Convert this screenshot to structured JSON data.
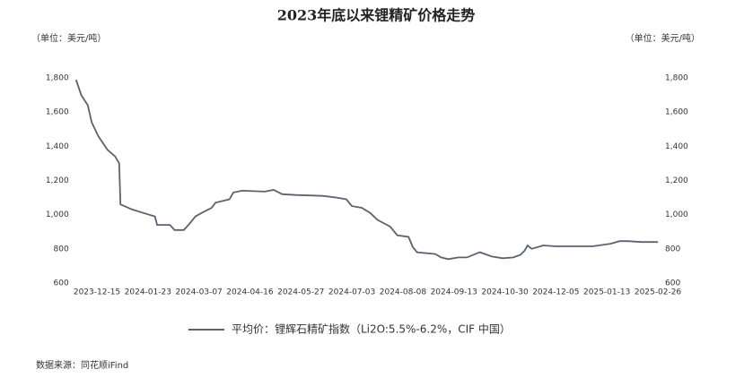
{
  "chart_data": {
    "type": "line",
    "title": "2023年底以来锂精矿价格走势",
    "y_label": "（单位：美元/吨）",
    "y2_label": "（单位：美元/吨）",
    "source": "数据来源：同花顺iFind",
    "x": [
      "2023-11-29",
      "2023-12-03",
      "2023-12-08",
      "2023-12-11",
      "2023-12-16",
      "2023-12-23",
      "2023-12-29",
      "2024-01-01",
      "2024-01-02",
      "2024-01-11",
      "2024-01-24",
      "2024-01-29",
      "2024-01-31",
      "2024-02-11",
      "2024-02-15",
      "2024-02-23",
      "2024-02-27",
      "2024-03-04",
      "2024-03-09",
      "2024-03-17",
      "2024-03-20",
      "2024-03-31",
      "2024-04-03",
      "2024-04-10",
      "2024-04-28",
      "2024-05-05",
      "2024-05-12",
      "2024-05-23",
      "2024-06-12",
      "2024-06-22",
      "2024-06-29",
      "2024-07-03",
      "2024-07-10",
      "2024-07-16",
      "2024-07-21",
      "2024-07-30",
      "2024-08-04",
      "2024-08-12",
      "2024-08-15",
      "2024-08-18",
      "2024-08-31",
      "2024-09-04",
      "2024-09-09",
      "2024-09-17",
      "2024-09-25",
      "2024-10-07",
      "2024-10-18",
      "2024-10-28",
      "2024-11-05",
      "2024-11-10",
      "2024-11-13",
      "2024-11-15",
      "2024-11-18",
      "2024-11-26",
      "2024-12-05",
      "2025-01-02",
      "2025-01-16",
      "2025-01-24",
      "2025-01-31",
      "2025-02-12",
      "2025-02-26"
    ],
    "series": [
      {
        "name": "平均价：锂辉石精矿指数（Li2O:5.5%-6.2%，CIF 中国）",
        "color": "#5d6170",
        "values": [
          1790,
          1700,
          1640,
          1540,
          1460,
          1380,
          1340,
          1300,
          1060,
          1030,
          1000,
          990,
          940,
          940,
          910,
          910,
          940,
          990,
          1010,
          1040,
          1070,
          1090,
          1130,
          1140,
          1135,
          1145,
          1120,
          1115,
          1110,
          1100,
          1090,
          1050,
          1040,
          1010,
          970,
          930,
          880,
          870,
          810,
          780,
          770,
          750,
          740,
          750,
          750,
          780,
          755,
          745,
          750,
          765,
          790,
          820,
          800,
          820,
          815,
          815,
          830,
          845,
          845,
          840,
          840
        ]
      }
    ],
    "xlim": [
      "2023-11-29",
      "2025-02-26"
    ],
    "xticks": [
      "2023-12-15",
      "2024-01-23",
      "2024-03-07",
      "2024-04-16",
      "2024-05-27",
      "2024-07-03",
      "2024-08-08",
      "2024-09-13",
      "2024-10-30",
      "2024-12-05",
      "2025-01-13",
      "2025-02-26"
    ],
    "ylim": [
      600,
      1800
    ],
    "yticks": [
      600,
      800,
      {
        "value": 1000,
        "label": "1,000"
      },
      {
        "value": 1200,
        "label": "1,200"
      },
      {
        "value": 1400,
        "label": "1,400"
      },
      {
        "value": 1600,
        "label": "1,600"
      },
      {
        "value": 1800,
        "label": "1,800"
      }
    ],
    "y2lim": [
      600,
      1800
    ],
    "y2ticks": [
      600,
      800,
      {
        "value": 1000,
        "label": "1,000"
      },
      {
        "value": 1200,
        "label": "1,200"
      },
      {
        "value": 1400,
        "label": "1,400"
      },
      {
        "value": 1600,
        "label": "1,600"
      },
      {
        "value": 1800,
        "label": "1,800"
      }
    ],
    "grid": false
  }
}
